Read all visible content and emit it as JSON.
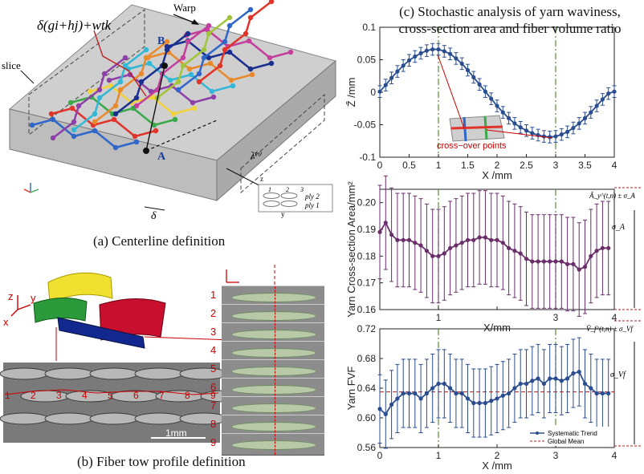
{
  "panel_a": {
    "caption": "(a) Centerline definition",
    "formula": "δ(gi+hj)+wtk",
    "warp_label": "Warp",
    "slice_label": "slice",
    "delta_label": "δ",
    "lambda_label": "λ̄⁽ᵗ⁾",
    "point_a": "A",
    "point_b": "B",
    "ply_labels": [
      "ply 2",
      "ply 1"
    ],
    "ply_numbers": [
      "1",
      "2",
      "3"
    ],
    "axis_z": "z",
    "axis_y": "y",
    "yarn_colors": [
      "#2f66c9",
      "#e0342b",
      "#39a94a",
      "#f2d23a",
      "#8e3fa8",
      "#32b7d6",
      "#e88a2a",
      "#1b2f8f",
      "#c2409c",
      "#a0c43a"
    ]
  },
  "panel_b": {
    "caption": "(b) Fiber tow profile definition",
    "scale_bar": "1mm",
    "slice_numbers": [
      "1",
      "2",
      "3",
      "4",
      "5",
      "6",
      "7",
      "8",
      "9"
    ],
    "axis_z": "z",
    "axis_y": "y",
    "axis_x": "x",
    "inline_numbers": [
      "1",
      "2",
      "3",
      "4",
      "5",
      "6",
      "7",
      "8",
      "9"
    ],
    "tow_colors": [
      "#f0e030",
      "#2b9a3b",
      "#c8102e",
      "#13288f"
    ]
  },
  "panel_c": {
    "caption_line1": "(c) Stochastic analysis of yarn waviness,",
    "caption_line2": "cross-section area and fiber volume ratio",
    "crossover_label": "cross−over points",
    "legend_trend": "Systematic Trend",
    "legend_mean": "Global Mean",
    "bracket_top1": "Ā_y^(t,n) ± σ_A",
    "bracket_mid1": "σ_A",
    "bracket_top2": "V̄_f^(t,n) ± σ_Vf",
    "bracket_mid2": "σ_Vf",
    "colors": {
      "series": "#2a4d8f",
      "area_series": "#6a2f6a",
      "mean": "#b01c1c",
      "guide": "#5a8a3a",
      "marker": "#1f3f7a"
    }
  },
  "chart_data": [
    {
      "type": "line",
      "title": "",
      "xlabel": "X /mm",
      "ylabel": "Z̄ /mm",
      "xlim": [
        0,
        4
      ],
      "ylim": [
        -0.1,
        0.1
      ],
      "xticks": [
        0,
        0.5,
        1,
        1.5,
        2,
        2.5,
        3,
        3.5,
        4
      ],
      "xtick_labels": [
        "0",
        "0.5",
        "1",
        "1.5",
        "2",
        "2.5",
        "3",
        "3.5",
        "4"
      ],
      "yticks": [
        -0.1,
        -0.05,
        0,
        0.05,
        0.1
      ],
      "ytick_labels": [
        "-0.1",
        "-0.05",
        "0",
        "0.05",
        "0.1"
      ],
      "vlines": [
        1,
        3
      ],
      "x": [
        0,
        0.1,
        0.2,
        0.3,
        0.4,
        0.5,
        0.6,
        0.7,
        0.8,
        0.9,
        1.0,
        1.1,
        1.2,
        1.3,
        1.4,
        1.5,
        1.6,
        1.7,
        1.8,
        1.9,
        2.0,
        2.1,
        2.2,
        2.3,
        2.4,
        2.5,
        2.6,
        2.7,
        2.8,
        2.9,
        3.0,
        3.1,
        3.2,
        3.3,
        3.4,
        3.5,
        3.6,
        3.7,
        3.8,
        3.9,
        4.0
      ],
      "y": [
        0.001,
        0.011,
        0.022,
        0.032,
        0.041,
        0.049,
        0.055,
        0.06,
        0.064,
        0.066,
        0.066,
        0.063,
        0.059,
        0.052,
        0.044,
        0.034,
        0.023,
        0.012,
        0.001,
        -0.01,
        -0.021,
        -0.031,
        -0.04,
        -0.048,
        -0.054,
        -0.059,
        -0.063,
        -0.066,
        -0.068,
        -0.069,
        -0.068,
        -0.065,
        -0.061,
        -0.055,
        -0.048,
        -0.04,
        -0.031,
        -0.021,
        -0.011,
        -0.002,
        0.001
      ],
      "err": 0.009
    },
    {
      "type": "line",
      "title": "",
      "xlabel": "X/mm",
      "ylabel": "Yarn Cross-section Area/mm²",
      "xlim": [
        0,
        4
      ],
      "ylim": [
        0.16,
        0.205
      ],
      "xticks": [
        0,
        1,
        2,
        3,
        4
      ],
      "xtick_labels": [
        "",
        "1",
        "",
        "3",
        "4"
      ],
      "yticks": [
        0.16,
        0.17,
        0.18,
        0.19,
        0.2
      ],
      "ytick_labels": [
        "0.16",
        "0.17",
        "0.18",
        "0.19",
        "0.20"
      ],
      "vlines": [
        1,
        3
      ],
      "x": [
        0,
        0.1,
        0.2,
        0.3,
        0.4,
        0.5,
        0.6,
        0.7,
        0.8,
        0.9,
        1.0,
        1.1,
        1.2,
        1.3,
        1.4,
        1.5,
        1.6,
        1.7,
        1.8,
        1.9,
        2.0,
        2.1,
        2.2,
        2.3,
        2.4,
        2.5,
        2.6,
        2.7,
        2.8,
        2.9,
        3.0,
        3.1,
        3.2,
        3.3,
        3.4,
        3.5,
        3.6,
        3.7,
        3.8,
        3.9
      ],
      "y": [
        0.189,
        0.1925,
        0.188,
        0.186,
        0.186,
        0.186,
        0.185,
        0.184,
        0.182,
        0.18,
        0.18,
        0.181,
        0.183,
        0.184,
        0.185,
        0.186,
        0.186,
        0.187,
        0.187,
        0.186,
        0.186,
        0.185,
        0.183,
        0.182,
        0.181,
        0.179,
        0.178,
        0.178,
        0.178,
        0.178,
        0.178,
        0.178,
        0.177,
        0.177,
        0.175,
        0.176,
        0.18,
        0.182,
        0.183,
        0.183
      ],
      "err": 0.0175
    },
    {
      "type": "line",
      "title": "",
      "xlabel": "X /mm",
      "ylabel": "Yarn FVF",
      "xlim": [
        0,
        4
      ],
      "ylim": [
        0.56,
        0.72
      ],
      "xticks": [
        0,
        1,
        2,
        3,
        4
      ],
      "xtick_labels": [
        "0",
        "1",
        "2",
        "3",
        "4"
      ],
      "yticks": [
        0.56,
        0.6,
        0.64,
        0.68,
        0.72
      ],
      "ytick_labels": [
        "0.56",
        "0.60",
        "0.64",
        "0.68",
        "0.72"
      ],
      "vlines": [
        1,
        3
      ],
      "global_mean": 0.635,
      "series": [
        {
          "name": "Systematic Trend"
        },
        {
          "name": "Global Mean"
        }
      ],
      "x": [
        0,
        0.1,
        0.2,
        0.3,
        0.4,
        0.5,
        0.6,
        0.7,
        0.8,
        0.9,
        1.0,
        1.1,
        1.2,
        1.3,
        1.4,
        1.5,
        1.6,
        1.7,
        1.8,
        1.9,
        2.0,
        2.1,
        2.2,
        2.3,
        2.4,
        2.5,
        2.6,
        2.7,
        2.8,
        2.9,
        3.0,
        3.1,
        3.2,
        3.3,
        3.4,
        3.5,
        3.6,
        3.7,
        3.8,
        3.9
      ],
      "y": [
        0.612,
        0.605,
        0.618,
        0.626,
        0.633,
        0.633,
        0.633,
        0.626,
        0.633,
        0.64,
        0.646,
        0.646,
        0.64,
        0.633,
        0.633,
        0.626,
        0.62,
        0.62,
        0.62,
        0.623,
        0.626,
        0.63,
        0.633,
        0.64,
        0.646,
        0.646,
        0.65,
        0.653,
        0.646,
        0.653,
        0.653,
        0.65,
        0.653,
        0.66,
        0.662,
        0.646,
        0.64,
        0.633,
        0.633,
        0.633
      ],
      "err": 0.046
    }
  ]
}
